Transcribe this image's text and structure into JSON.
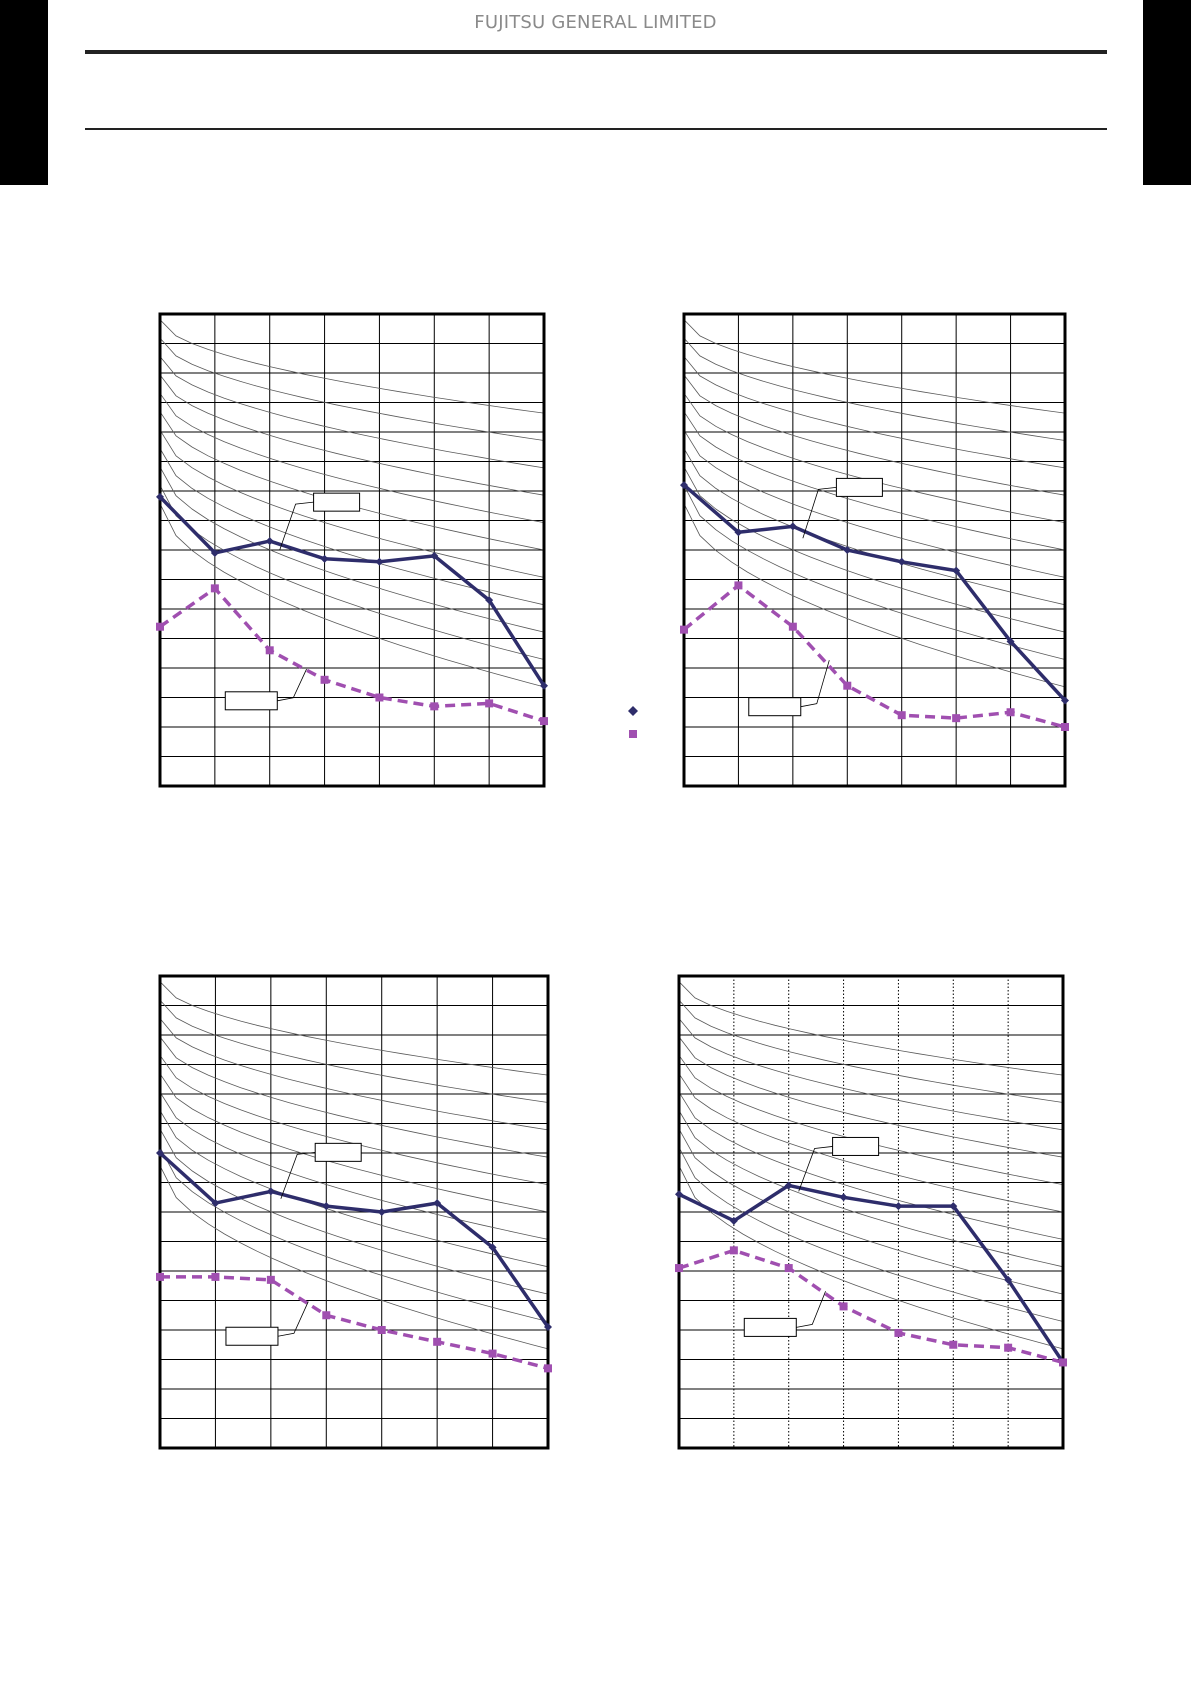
{
  "header": {
    "company": "FUJITSU GENERAL LIMITED"
  },
  "colors": {
    "nc_line": "#2e2d6b",
    "spl_line": "#a04fb0",
    "grid": "#000000",
    "curve": "#5a5a5a"
  },
  "legend": {
    "items": [
      {
        "marker": "diamond",
        "color": "#2e2d6b"
      },
      {
        "marker": "square",
        "color": "#a04fb0"
      }
    ]
  },
  "chart_data": [
    {
      "type": "line",
      "categories": [
        "1",
        "2",
        "3",
        "4",
        "5",
        "6",
        "7",
        "8"
      ],
      "ylim": [
        0,
        16
      ],
      "series": [
        {
          "style": "solid",
          "values": [
            9.8,
            7.9,
            8.3,
            7.7,
            7.6,
            7.8,
            6.3,
            3.4
          ]
        },
        {
          "style": "dashed",
          "values": [
            5.4,
            6.7,
            4.6,
            3.6,
            3.0,
            2.7,
            2.8,
            2.2
          ]
        }
      ]
    },
    {
      "type": "line",
      "categories": [
        "1",
        "2",
        "3",
        "4",
        "5",
        "6",
        "7",
        "8"
      ],
      "ylim": [
        0,
        16
      ],
      "series": [
        {
          "style": "solid",
          "values": [
            10.2,
            8.6,
            8.8,
            8.0,
            7.6,
            7.3,
            4.9,
            2.9
          ]
        },
        {
          "style": "dashed",
          "values": [
            5.3,
            6.8,
            5.4,
            3.4,
            2.4,
            2.3,
            2.5,
            2.0
          ]
        }
      ]
    },
    {
      "type": "line",
      "categories": [
        "1",
        "2",
        "3",
        "4",
        "5",
        "6",
        "7",
        "8"
      ],
      "ylim": [
        0,
        16
      ],
      "series": [
        {
          "style": "solid",
          "values": [
            10.0,
            8.3,
            8.7,
            8.2,
            8.0,
            8.3,
            6.8,
            4.1
          ]
        },
        {
          "style": "dashed",
          "values": [
            5.8,
            5.8,
            5.7,
            4.5,
            4.0,
            3.6,
            3.2,
            2.7
          ]
        }
      ]
    },
    {
      "type": "line",
      "categories": [
        "1",
        "2",
        "3",
        "4",
        "5",
        "6",
        "7",
        "8"
      ],
      "ylim": [
        0,
        16
      ],
      "series": [
        {
          "style": "solid",
          "values": [
            8.6,
            7.7,
            8.9,
            8.5,
            8.2,
            8.2,
            5.7,
            2.9
          ]
        },
        {
          "style": "dashed",
          "values": [
            6.1,
            6.7,
            6.1,
            4.8,
            3.9,
            3.5,
            3.4,
            2.9
          ]
        }
      ]
    }
  ]
}
